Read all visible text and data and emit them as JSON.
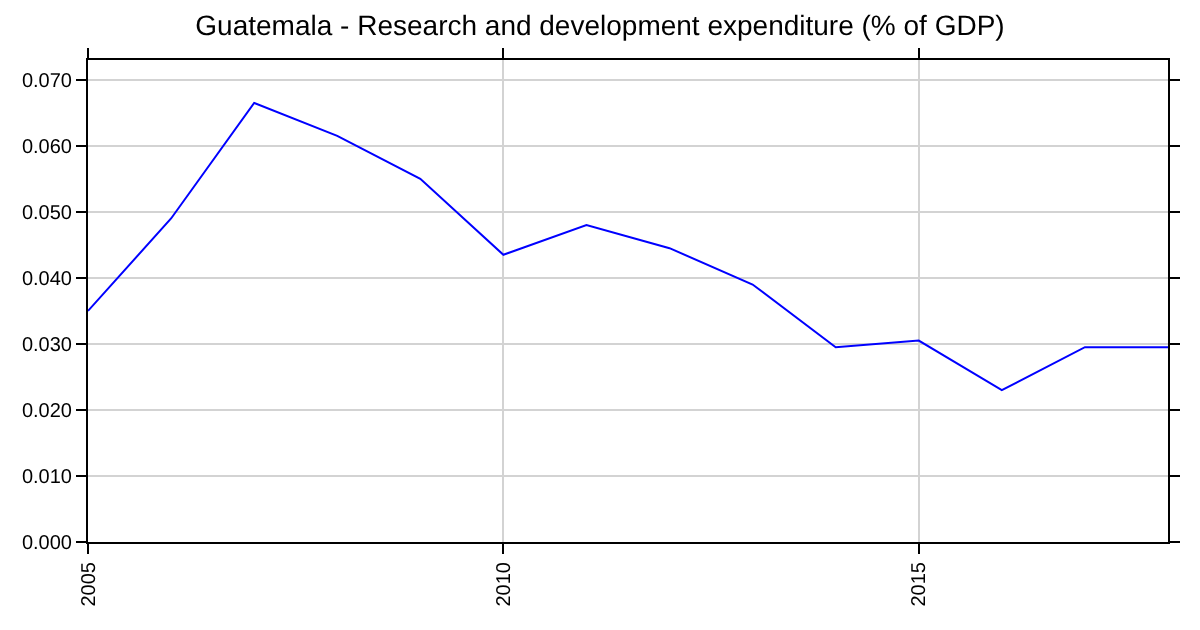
{
  "chart_data": {
    "type": "line",
    "title": "Guatemala - Research and development expenditure (% of GDP)",
    "x": [
      2005,
      2006,
      2007,
      2008,
      2009,
      2010,
      2011,
      2012,
      2013,
      2014,
      2015,
      2016,
      2017,
      2018
    ],
    "series": [
      {
        "color": "#0000ff",
        "values": [
          0.035,
          0.049,
          0.0665,
          0.0615,
          0.055,
          0.0435,
          0.048,
          0.0445,
          0.039,
          0.0295,
          0.0305,
          0.023,
          0.0295,
          0.0295
        ]
      }
    ],
    "xlim": [
      2005,
      2018
    ],
    "xticks": [
      2005,
      2010,
      2015
    ],
    "ylim": [
      0,
      0.073
    ],
    "yticks": [
      {
        "value": 0,
        "label": "0.000"
      },
      {
        "value": 0.01,
        "label": "0.010"
      },
      {
        "value": 0.02,
        "label": "0.020"
      },
      {
        "value": 0.03,
        "label": "0.030"
      },
      {
        "value": 0.04,
        "label": "0.040"
      },
      {
        "value": 0.05,
        "label": "0.050"
      },
      {
        "value": 0.06,
        "label": "0.060"
      },
      {
        "value": 0.07,
        "label": "0.070"
      }
    ],
    "grid": true,
    "line_style": "solid",
    "marker": "none"
  }
}
